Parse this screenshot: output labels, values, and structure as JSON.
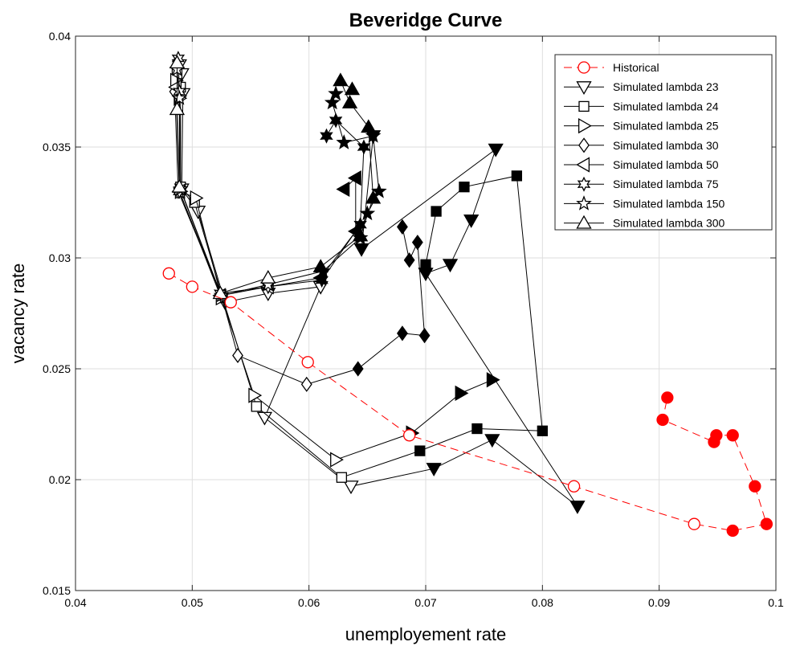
{
  "chart_data": {
    "type": "line",
    "title": "Beveridge Curve",
    "xlabel": "unemployement rate",
    "ylabel": "vacancy rate",
    "xlim": [
      0.04,
      0.1
    ],
    "ylim": [
      0.015,
      0.04
    ],
    "xticks": [
      0.04,
      0.05,
      0.06,
      0.07,
      0.08,
      0.09,
      0.1
    ],
    "yticks": [
      0.015,
      0.02,
      0.025,
      0.03,
      0.035,
      0.04
    ],
    "xtick_labels": [
      "0.04",
      "0.05",
      "0.06",
      "0.07",
      "0.08",
      "0.09",
      "0.1"
    ],
    "ytick_labels": [
      "0.015",
      "0.02",
      "0.025",
      "0.03",
      "0.035",
      "0.04"
    ],
    "grid": true,
    "legend_position": "top-right",
    "series": [
      {
        "name": "Historical",
        "color": "#ff0000",
        "line_style": "dashed",
        "marker": "circle",
        "points": [
          [
            0.048,
            0.0293,
            "open"
          ],
          [
            0.05,
            0.0287,
            "open"
          ],
          [
            0.0533,
            0.028,
            "open"
          ],
          [
            0.0599,
            0.0253,
            "open"
          ],
          [
            0.0686,
            0.022,
            "open"
          ],
          [
            0.0827,
            0.0197,
            "open"
          ],
          [
            0.093,
            0.018,
            "open"
          ],
          [
            0.0963,
            0.0177,
            "filled"
          ],
          [
            0.0992,
            0.018,
            "filled"
          ],
          [
            0.0982,
            0.0197,
            "filled"
          ],
          [
            0.0963,
            0.022,
            "filled"
          ],
          [
            0.0949,
            0.022,
            "filled"
          ],
          [
            0.0947,
            0.0217,
            "filled"
          ],
          [
            0.0903,
            0.0227,
            "filled"
          ],
          [
            0.0907,
            0.0237,
            "filled"
          ]
        ]
      },
      {
        "name": "Simulated lambda 23",
        "color": "#000000",
        "line_style": "solid",
        "marker": "triangle-down",
        "points": [
          [
            0.0489,
            0.0387,
            "open"
          ],
          [
            0.0491,
            0.0383,
            "open"
          ],
          [
            0.0492,
            0.0374,
            "open"
          ],
          [
            0.0491,
            0.0331,
            "open"
          ],
          [
            0.0505,
            0.0321,
            "open"
          ],
          [
            0.0528,
            0.028,
            "open"
          ],
          [
            0.0565,
            0.0284,
            "open"
          ],
          [
            0.061,
            0.0287,
            "open"
          ],
          [
            0.0562,
            0.0228,
            "open"
          ],
          [
            0.0636,
            0.0197,
            "open"
          ],
          [
            0.0707,
            0.0205,
            "filled"
          ],
          [
            0.0757,
            0.0218,
            "filled"
          ],
          [
            0.083,
            0.0188,
            "filled"
          ],
          [
            0.07,
            0.0293,
            "filled"
          ],
          [
            0.0721,
            0.0297,
            "filled"
          ],
          [
            0.0739,
            0.0317,
            "filled"
          ],
          [
            0.076,
            0.0349,
            "filled"
          ],
          [
            0.0645,
            0.0304,
            "filled"
          ],
          [
            0.0655,
            0.0355,
            "filled"
          ]
        ]
      },
      {
        "name": "Simulated lambda 24",
        "color": "#000000",
        "line_style": "solid",
        "marker": "square",
        "points": [
          [
            0.0487,
            0.0383,
            "open"
          ],
          [
            0.049,
            0.0377,
            "open"
          ],
          [
            0.049,
            0.0332,
            "open"
          ],
          [
            0.0502,
            0.0325,
            "open"
          ],
          [
            0.0526,
            0.0282,
            "open"
          ],
          [
            0.0555,
            0.0233,
            "open"
          ],
          [
            0.0628,
            0.0201,
            "open"
          ],
          [
            0.0695,
            0.0213,
            "filled"
          ],
          [
            0.0744,
            0.0223,
            "filled"
          ],
          [
            0.08,
            0.0222,
            "filled"
          ],
          [
            0.0778,
            0.0337,
            "filled"
          ],
          [
            0.0733,
            0.0332,
            "filled"
          ],
          [
            0.0709,
            0.0321,
            "filled"
          ],
          [
            0.07,
            0.0297,
            "filled"
          ]
        ]
      },
      {
        "name": "Simulated lambda 25",
        "color": "#000000",
        "line_style": "solid",
        "marker": "triangle-right",
        "points": [
          [
            0.0486,
            0.038,
            "open"
          ],
          [
            0.0489,
            0.0372,
            "open"
          ],
          [
            0.049,
            0.033,
            "open"
          ],
          [
            0.0503,
            0.0327,
            "open"
          ],
          [
            0.0525,
            0.0282,
            "open"
          ],
          [
            0.0553,
            0.0238,
            "open"
          ],
          [
            0.0623,
            0.0209,
            "open"
          ],
          [
            0.0688,
            0.0221,
            "filled"
          ],
          [
            0.073,
            0.0239,
            "filled"
          ],
          [
            0.0757,
            0.0245,
            "filled"
          ]
        ]
      },
      {
        "name": "Simulated lambda 30",
        "color": "#000000",
        "line_style": "solid",
        "marker": "diamond",
        "points": [
          [
            0.0485,
            0.0375,
            "open"
          ],
          [
            0.0488,
            0.033,
            "open"
          ],
          [
            0.0525,
            0.0283,
            "open"
          ],
          [
            0.0539,
            0.0256,
            "open"
          ],
          [
            0.0598,
            0.0243,
            "open"
          ],
          [
            0.0642,
            0.025,
            "filled"
          ],
          [
            0.068,
            0.0266,
            "filled"
          ],
          [
            0.0699,
            0.0265,
            "filled"
          ],
          [
            0.0693,
            0.0307,
            "filled"
          ],
          [
            0.0686,
            0.0299,
            "filled"
          ],
          [
            0.068,
            0.0314,
            "filled"
          ]
        ]
      },
      {
        "name": "Simulated lambda 50",
        "color": "#000000",
        "line_style": "solid",
        "marker": "triangle-left",
        "points": [
          [
            0.0486,
            0.0377,
            "open"
          ],
          [
            0.0489,
            0.033,
            "open"
          ],
          [
            0.0524,
            0.0283,
            "open"
          ],
          [
            0.0565,
            0.0287,
            "open"
          ],
          [
            0.061,
            0.0291,
            "filled"
          ],
          [
            0.064,
            0.0312,
            "filled"
          ],
          [
            0.064,
            0.0336,
            "filled"
          ],
          [
            0.063,
            0.0331,
            "filled"
          ]
        ]
      },
      {
        "name": "Simulated lambda 75",
        "color": "#000000",
        "line_style": "solid",
        "marker": "star6",
        "points": [
          [
            0.0488,
            0.039,
            "open"
          ],
          [
            0.0489,
            0.0375,
            "open"
          ],
          [
            0.0489,
            0.033,
            "open"
          ],
          [
            0.0524,
            0.0284,
            "open"
          ],
          [
            0.0565,
            0.0287,
            "open"
          ],
          [
            0.0611,
            0.029,
            "filled"
          ],
          [
            0.0644,
            0.0315,
            "filled"
          ],
          [
            0.0647,
            0.035,
            "filled"
          ],
          [
            0.0623,
            0.0362,
            "filled"
          ],
          [
            0.0615,
            0.0355,
            "filled"
          ]
        ]
      },
      {
        "name": "Simulated lambda 150",
        "color": "#000000",
        "line_style": "solid",
        "marker": "star5",
        "points": [
          [
            0.0487,
            0.0385,
            "open"
          ],
          [
            0.0489,
            0.0372,
            "open"
          ],
          [
            0.049,
            0.0331,
            "open"
          ],
          [
            0.0525,
            0.0283,
            "open"
          ],
          [
            0.0565,
            0.0288,
            "open"
          ],
          [
            0.0612,
            0.0294,
            "filled"
          ],
          [
            0.0644,
            0.0309,
            "filled"
          ],
          [
            0.065,
            0.032,
            "filled"
          ],
          [
            0.066,
            0.033,
            "filled"
          ],
          [
            0.0655,
            0.0355,
            "filled"
          ],
          [
            0.063,
            0.0352,
            "filled"
          ],
          [
            0.062,
            0.037,
            "filled"
          ],
          [
            0.0623,
            0.0374,
            "filled"
          ]
        ]
      },
      {
        "name": "Simulated lambda 300",
        "color": "#000000",
        "line_style": "solid",
        "marker": "triangle-up",
        "points": [
          [
            0.0487,
            0.0388,
            "open"
          ],
          [
            0.0487,
            0.0367,
            "open"
          ],
          [
            0.0489,
            0.0332,
            "open"
          ],
          [
            0.0524,
            0.0284,
            "open"
          ],
          [
            0.0565,
            0.0291,
            "open"
          ],
          [
            0.061,
            0.0296,
            "filled"
          ],
          [
            0.0644,
            0.031,
            "filled"
          ],
          [
            0.0655,
            0.0327,
            "filled"
          ],
          [
            0.0651,
            0.0359,
            "filled"
          ],
          [
            0.0635,
            0.037,
            "filled"
          ],
          [
            0.0627,
            0.038,
            "filled"
          ],
          [
            0.0637,
            0.0376,
            "filled"
          ]
        ]
      }
    ]
  }
}
